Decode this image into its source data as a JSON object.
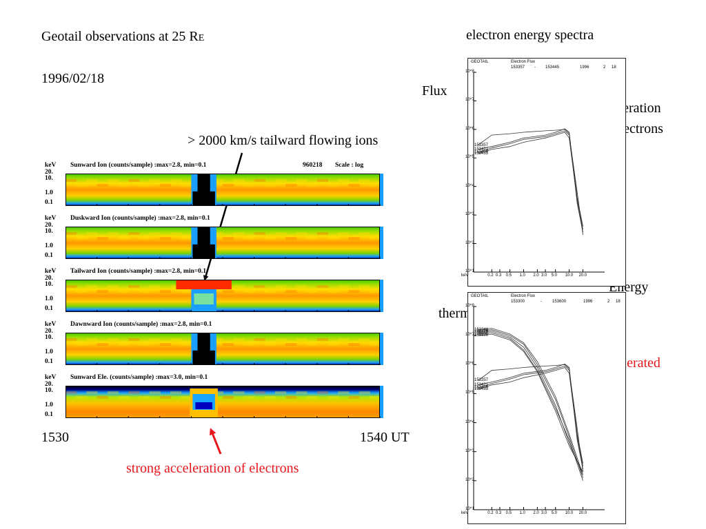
{
  "slide": {
    "title_main": "Geotail observations at 25 R",
    "title_sub": "E",
    "date": "1996/02/18",
    "ion_annotation": "> 2000 km/s tailward flowing ions",
    "electron_annotation": "strong acceleration of electrons",
    "spectra_title": "electron energy spectra",
    "flux_label": "Flux",
    "strong_accel_line1": "strong acceleration",
    "strong_accel_line2": "of electrons",
    "energy_label": "Energy",
    "thermal_label": "thermal",
    "accelerated_label": "accelerated",
    "time_start": "1530",
    "time_end": "1540 UT",
    "colors": {
      "annotation_red": "#e8151b",
      "arrow_black": "#000000"
    }
  },
  "chart_data": [
    {
      "type": "heatmap",
      "panels": [
        {
          "title": "Sunward Ion  (counts/sample) :max=2.8, min=0.1",
          "extra": "960218",
          "scale": "Scale : log",
          "kind": "ion",
          "burst_color": "#000000"
        },
        {
          "title": "Duskward Ion  (counts/sample) :max=2.8, min=0.1",
          "extra": "",
          "scale": "",
          "kind": "ion",
          "burst_color": "#000000"
        },
        {
          "title": "Tailward Ion  (counts/sample) :max=2.8, min=0.1",
          "extra": "",
          "scale": "",
          "kind": "tail",
          "burst_color": "#ff2000"
        },
        {
          "title": "Dawnward Ion  (counts/sample) :max=2.8, min=0.1",
          "extra": "",
          "scale": "",
          "kind": "ion",
          "burst_color": "#000000"
        },
        {
          "title": "Sunward Ele. (counts/sample) :max=3.0, min=0.1",
          "extra": "",
          "scale": "",
          "kind": "ele",
          "burst_color": "#ff9900"
        }
      ],
      "y_unit": "keV",
      "y_ticks": [
        "20.",
        "10.",
        "1.0",
        "0.1"
      ],
      "x_ticks": [
        "1530",
        "1540 UT"
      ]
    },
    {
      "type": "line",
      "header": {
        "mission": "GEOTAIL",
        "title": "Electron Flux",
        "t_start": "153357",
        "dash": "-",
        "t_end": "153445",
        "year": "1996",
        "month": "2",
        "day": "18"
      },
      "y_ticks": [
        "10^8",
        "10^7",
        "10^6",
        "10^5",
        "10^4",
        "10^3",
        "10^2",
        "10^1"
      ],
      "x_unit": "keV",
      "x_ticks": [
        "0.2",
        "0.3",
        "0.5",
        "1.0",
        "2.0",
        "3.0",
        "5.0",
        "10.0",
        "20.0"
      ],
      "curve_labels": [
        "153357",
        "153409",
        "153421",
        "153433"
      ],
      "series": [
        {
          "values": [
            [
              0.1,
              5.45
            ],
            [
              0.2,
              5.8
            ],
            [
              0.5,
              5.85
            ],
            [
              1.0,
              5.9
            ],
            [
              3.0,
              5.95
            ],
            [
              5.0,
              5.97
            ],
            [
              8.0,
              6.0
            ],
            [
              10.0,
              5.85
            ],
            [
              15.0,
              3.6
            ],
            [
              20.0,
              2.6
            ]
          ]
        },
        {
          "values": [
            [
              0.1,
              5.2
            ],
            [
              0.2,
              5.35
            ],
            [
              0.5,
              5.5
            ],
            [
              1.0,
              5.65
            ],
            [
              3.0,
              5.75
            ],
            [
              5.0,
              5.85
            ],
            [
              8.0,
              5.95
            ],
            [
              10.0,
              5.8
            ],
            [
              15.0,
              3.8
            ],
            [
              20.0,
              2.3
            ]
          ]
        },
        {
          "values": [
            [
              0.1,
              5.3
            ],
            [
              0.2,
              5.4
            ],
            [
              0.5,
              5.55
            ],
            [
              1.0,
              5.7
            ],
            [
              3.0,
              5.8
            ],
            [
              5.0,
              5.9
            ],
            [
              8.0,
              6.02
            ],
            [
              10.0,
              5.9
            ],
            [
              15.0,
              3.4
            ],
            [
              20.0,
              2.4
            ]
          ]
        },
        {
          "values": [
            [
              0.1,
              5.15
            ],
            [
              0.2,
              5.3
            ],
            [
              0.5,
              5.4
            ],
            [
              1.0,
              5.55
            ],
            [
              3.0,
              5.7
            ],
            [
              5.0,
              5.8
            ],
            [
              8.0,
              5.9
            ],
            [
              10.0,
              5.7
            ],
            [
              15.0,
              3.5
            ],
            [
              20.0,
              2.5
            ]
          ]
        }
      ]
    },
    {
      "type": "line",
      "header": {
        "mission": "GEOTAIL",
        "title": "Electron Flux",
        "t_start": "153300",
        "dash": "-",
        "t_end": "153600",
        "year": "1996",
        "month": "2",
        "day": "18"
      },
      "y_ticks": [
        "10^8",
        "10^7",
        "10^6",
        "10^5",
        "10^4",
        "10^3",
        "10^2",
        "10^1"
      ],
      "x_unit": "keV",
      "x_ticks": [
        "0.2",
        "0.3",
        "0.5",
        "1.0",
        "2.0",
        "3.0",
        "5.0",
        "10.0",
        "20.0"
      ],
      "curve_labels": [
        "153300",
        "153312",
        "153324",
        "153336",
        "153348",
        "153357",
        "153409",
        "153421",
        "153433"
      ],
      "series": [
        {
          "values": [
            [
              0.1,
              7.05
            ],
            [
              0.2,
              7.1
            ],
            [
              0.5,
              6.9
            ],
            [
              1.0,
              6.5
            ],
            [
              2.0,
              5.8
            ],
            [
              5.0,
              4.5
            ],
            [
              10.0,
              3.4
            ],
            [
              20.0,
              2.0
            ]
          ]
        },
        {
          "values": [
            [
              0.1,
              7.1
            ],
            [
              0.2,
              7.15
            ],
            [
              0.5,
              6.95
            ],
            [
              1.0,
              6.6
            ],
            [
              2.0,
              5.9
            ],
            [
              5.0,
              4.6
            ],
            [
              10.0,
              3.3
            ],
            [
              20.0,
              2.2
            ]
          ]
        },
        {
          "values": [
            [
              0.1,
              7.15
            ],
            [
              0.2,
              7.2
            ],
            [
              0.5,
              7.0
            ],
            [
              1.0,
              6.7
            ],
            [
              2.0,
              6.0
            ],
            [
              5.0,
              4.8
            ],
            [
              10.0,
              3.5
            ],
            [
              20.0,
              2.1
            ]
          ]
        },
        {
          "values": [
            [
              0.1,
              7.0
            ],
            [
              0.2,
              7.05
            ],
            [
              0.5,
              6.85
            ],
            [
              1.0,
              6.45
            ],
            [
              2.0,
              5.75
            ],
            [
              5.0,
              4.4
            ],
            [
              10.0,
              3.2
            ],
            [
              20.0,
              2.3
            ]
          ]
        },
        {
          "values": [
            [
              0.1,
              7.2
            ],
            [
              0.2,
              7.25
            ],
            [
              0.5,
              7.05
            ],
            [
              1.0,
              6.75
            ],
            [
              2.0,
              6.1
            ],
            [
              5.0,
              4.9
            ],
            [
              10.0,
              3.6
            ],
            [
              20.0,
              2.2
            ]
          ]
        },
        {
          "values": [
            [
              0.1,
              5.45
            ],
            [
              0.2,
              5.8
            ],
            [
              0.5,
              5.85
            ],
            [
              1.0,
              5.9
            ],
            [
              3.0,
              5.95
            ],
            [
              5.0,
              5.97
            ],
            [
              8.0,
              6.0
            ],
            [
              10.0,
              5.85
            ],
            [
              15.0,
              3.6
            ],
            [
              20.0,
              2.6
            ]
          ]
        },
        {
          "values": [
            [
              0.1,
              5.2
            ],
            [
              0.2,
              5.35
            ],
            [
              0.5,
              5.5
            ],
            [
              1.0,
              5.65
            ],
            [
              3.0,
              5.75
            ],
            [
              5.0,
              5.85
            ],
            [
              8.0,
              5.95
            ],
            [
              10.0,
              5.8
            ],
            [
              15.0,
              3.8
            ],
            [
              20.0,
              2.3
            ]
          ]
        },
        {
          "values": [
            [
              0.1,
              5.3
            ],
            [
              0.2,
              5.4
            ],
            [
              0.5,
              5.55
            ],
            [
              1.0,
              5.7
            ],
            [
              3.0,
              5.8
            ],
            [
              5.0,
              5.9
            ],
            [
              8.0,
              6.02
            ],
            [
              10.0,
              5.9
            ],
            [
              15.0,
              3.4
            ],
            [
              20.0,
              2.4
            ]
          ]
        },
        {
          "values": [
            [
              0.1,
              5.15
            ],
            [
              0.2,
              5.3
            ],
            [
              0.5,
              5.4
            ],
            [
              1.0,
              5.55
            ],
            [
              3.0,
              5.7
            ],
            [
              5.0,
              5.8
            ],
            [
              8.0,
              5.9
            ],
            [
              10.0,
              5.7
            ],
            [
              15.0,
              3.5
            ],
            [
              20.0,
              2.5
            ]
          ]
        }
      ]
    }
  ]
}
